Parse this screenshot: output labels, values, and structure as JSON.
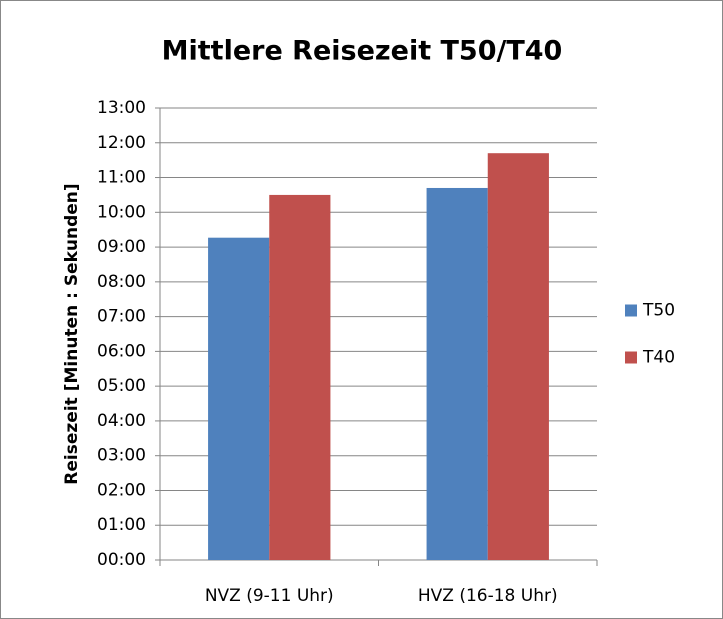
{
  "chart_data": {
    "type": "bar",
    "title": "Mittlere Reisezeit T50/T40",
    "y_label": "Reisezeit [Minuten : Sekunden]",
    "categories": [
      "NVZ (9-11 Uhr)",
      "HVZ (16-18 Uhr)"
    ],
    "series": [
      {
        "name": "T50",
        "color": "#4f81bd",
        "values": [
          9.27,
          10.7
        ]
      },
      {
        "name": "T40",
        "color": "#c0504d",
        "values": [
          10.5,
          11.7
        ]
      }
    ],
    "ylim": [
      0,
      13
    ],
    "yticks": [
      {
        "value": 0,
        "label": "00:00"
      },
      {
        "value": 1,
        "label": "01:00"
      },
      {
        "value": 2,
        "label": "02:00"
      },
      {
        "value": 3,
        "label": "03:00"
      },
      {
        "value": 4,
        "label": "04:00"
      },
      {
        "value": 5,
        "label": "05:00"
      },
      {
        "value": 6,
        "label": "06:00"
      },
      {
        "value": 7,
        "label": "07:00"
      },
      {
        "value": 8,
        "label": "08:00"
      },
      {
        "value": 9,
        "label": "09:00"
      },
      {
        "value": 10,
        "label": "10:00"
      },
      {
        "value": 11,
        "label": "11:00"
      },
      {
        "value": 12,
        "label": "12:00"
      },
      {
        "value": 13,
        "label": "13:00"
      }
    ],
    "grid": true,
    "legend": "right"
  }
}
